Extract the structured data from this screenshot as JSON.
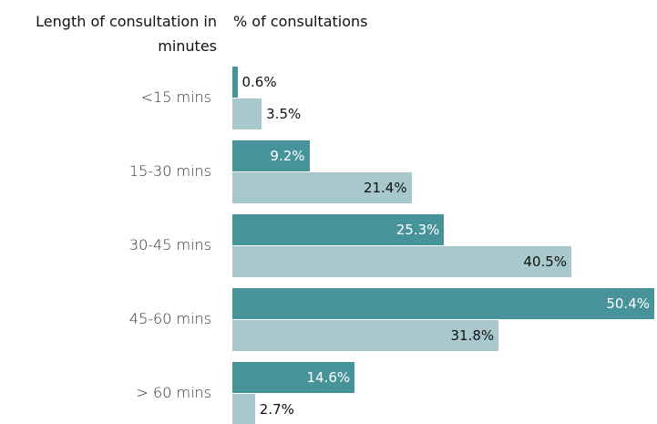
{
  "chart_data": {
    "type": "bar",
    "orientation": "horizontal",
    "y_label": "Length of consultation in minutes",
    "x_label": "% of consultations",
    "categories": [
      "<15 mins",
      "15-30 mins",
      "30-45 mins",
      "45-60 mins",
      "> 60 mins"
    ],
    "series": [
      {
        "color": "#46939a",
        "values": [
          0.6,
          9.2,
          25.3,
          50.4,
          14.6
        ],
        "value_labels": [
          "0.6%",
          "9.2%",
          "25.3%",
          "50.4%",
          "14.6%"
        ]
      },
      {
        "color": "#a7c9cd",
        "values": [
          3.5,
          21.4,
          40.5,
          31.8,
          2.7
        ],
        "value_labels": [
          "3.5%",
          "21.4%",
          "40.5%",
          "31.8%",
          "2.7%"
        ]
      }
    ]
  }
}
